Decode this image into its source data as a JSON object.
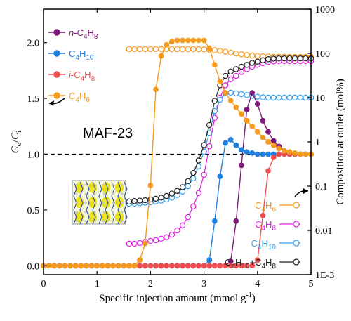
{
  "chart_data": {
    "type": "line",
    "xlabel": "Specific injection amount (mmol g-1)",
    "ylabel_left": "Co/Ci",
    "ylabel_right": "Composition at outlet (mol%)",
    "xlim": [
      0,
      5
    ],
    "ylim_left": [
      -0.08,
      2.3
    ],
    "ylim_right_log": [
      0.001,
      1000
    ],
    "x_ticks": [
      0,
      1,
      2,
      3,
      4,
      5
    ],
    "y_ticks_left": [
      0.0,
      0.5,
      1.0,
      1.5,
      2.0
    ],
    "y_ticks_right": [
      {
        "value": 0.001,
        "label": "1E-3"
      },
      {
        "value": 0.01,
        "label": "0.01"
      },
      {
        "value": 0.1,
        "label": "0.1"
      },
      {
        "value": 1,
        "label": "1"
      },
      {
        "value": 10,
        "label": "10"
      },
      {
        "value": 100,
        "label": "100"
      },
      {
        "value": 1000,
        "label": "1000"
      }
    ],
    "annotation": "MAF-23",
    "reference_line": {
      "y": 1.0,
      "style": "dashed"
    },
    "breakthrough_series": [
      {
        "name": "n-C4H8",
        "color": "#7b1a7b",
        "x": [
          0,
          0.1,
          0.2,
          0.3,
          0.4,
          0.5,
          0.6,
          0.7,
          0.8,
          0.9,
          1.0,
          1.1,
          1.2,
          1.3,
          1.4,
          1.5,
          1.6,
          1.7,
          1.8,
          1.9,
          2.0,
          2.1,
          2.2,
          2.3,
          2.4,
          2.5,
          2.6,
          2.7,
          2.8,
          2.9,
          3.0,
          3.1,
          3.2,
          3.3,
          3.4,
          3.5,
          3.6,
          3.7,
          3.8,
          3.9,
          4.0,
          4.1,
          4.2,
          4.3,
          4.4,
          4.5,
          4.6,
          4.7,
          4.8,
          4.9,
          5.0
        ],
        "y": [
          0,
          0,
          0,
          0,
          0,
          0,
          0,
          0,
          0,
          0,
          0,
          0,
          0,
          0,
          0,
          0,
          0,
          0,
          0,
          0,
          0,
          0,
          0,
          0,
          0,
          0,
          0,
          0,
          0,
          0,
          0,
          0,
          0,
          0,
          0,
          0.04,
          0.4,
          0.9,
          1.4,
          1.55,
          1.45,
          1.3,
          1.2,
          1.12,
          1.07,
          1.03,
          1.01,
          1.0,
          1.0,
          1.0,
          1.0
        ]
      },
      {
        "name": "C4H10",
        "color": "#1f7fe0",
        "x": [
          0,
          0.1,
          0.2,
          0.3,
          0.4,
          0.5,
          0.6,
          0.7,
          0.8,
          0.9,
          1.0,
          1.1,
          1.2,
          1.3,
          1.4,
          1.5,
          1.6,
          1.7,
          1.8,
          1.9,
          2.0,
          2.1,
          2.2,
          2.3,
          2.4,
          2.5,
          2.6,
          2.7,
          2.8,
          2.9,
          3.0,
          3.1,
          3.2,
          3.3,
          3.4,
          3.5,
          3.6,
          3.7,
          3.8,
          3.9,
          4.0,
          4.1,
          4.2,
          4.3,
          4.4,
          4.5,
          4.6,
          4.7,
          4.8,
          4.9,
          5.0
        ],
        "y": [
          0,
          0,
          0,
          0,
          0,
          0,
          0,
          0,
          0,
          0,
          0,
          0,
          0,
          0,
          0,
          0,
          0,
          0,
          0,
          0,
          0,
          0,
          0,
          0,
          0,
          0,
          0,
          0,
          0,
          0,
          0,
          0.05,
          0.4,
          0.8,
          1.1,
          1.13,
          1.08,
          1.04,
          1.02,
          1.01,
          1.0,
          1.0,
          1.0,
          1.0,
          1.0,
          1.0,
          1.0,
          1.0,
          1.0,
          1.0,
          1.0
        ]
      },
      {
        "name": "i-C4H8",
        "color": "#f04e4e",
        "x": [
          0,
          0.1,
          0.2,
          0.3,
          0.4,
          0.5,
          0.6,
          0.7,
          0.8,
          0.9,
          1.0,
          1.1,
          1.2,
          1.3,
          1.4,
          1.5,
          1.6,
          1.7,
          1.8,
          1.9,
          2.0,
          2.1,
          2.2,
          2.3,
          2.4,
          2.5,
          2.6,
          2.7,
          2.8,
          2.9,
          3.0,
          3.1,
          3.2,
          3.3,
          3.4,
          3.5,
          3.6,
          3.7,
          3.8,
          3.9,
          4.0,
          4.1,
          4.2,
          4.3,
          4.4,
          4.5,
          4.6,
          4.7,
          4.8,
          4.9,
          5.0
        ],
        "y": [
          0,
          0,
          0,
          0,
          0,
          0,
          0,
          0,
          0,
          0,
          0,
          0,
          0,
          0,
          0,
          0,
          0,
          0,
          0,
          0,
          0,
          0,
          0,
          0,
          0,
          0,
          0,
          0,
          0,
          0,
          0,
          0,
          0,
          0,
          0,
          0,
          0,
          0,
          0,
          0,
          0.05,
          0.45,
          0.85,
          0.97,
          1.0,
          1.0,
          1.0,
          1.0,
          1.0,
          1.0,
          1.0
        ]
      },
      {
        "name": "C4H6",
        "color": "#f59a1c",
        "x": [
          0,
          0.1,
          0.2,
          0.3,
          0.4,
          0.5,
          0.6,
          0.7,
          0.8,
          0.9,
          1.0,
          1.1,
          1.2,
          1.3,
          1.4,
          1.5,
          1.6,
          1.7,
          1.8,
          1.9,
          2.0,
          2.1,
          2.2,
          2.3,
          2.4,
          2.5,
          2.6,
          2.7,
          2.8,
          2.9,
          3.0,
          3.1,
          3.2,
          3.3,
          3.4,
          3.5,
          3.6,
          3.7,
          3.8,
          3.9,
          4.0,
          4.1,
          4.2,
          4.3,
          4.4,
          4.5,
          4.6,
          4.7,
          4.8,
          4.9,
          5.0
        ],
        "y": [
          0,
          0,
          0,
          0,
          0,
          0,
          0,
          0,
          0,
          0,
          0,
          0,
          0,
          0,
          0,
          0,
          0,
          0,
          0.05,
          0.2,
          0.72,
          1.58,
          1.88,
          1.98,
          2.01,
          2.02,
          2.02,
          2.02,
          2.02,
          2.02,
          2.02,
          1.95,
          1.8,
          1.65,
          1.55,
          1.48,
          1.42,
          1.36,
          1.3,
          1.25,
          1.2,
          1.15,
          1.11,
          1.08,
          1.05,
          1.03,
          1.02,
          1.01,
          1.0,
          1.0,
          1.0
        ]
      }
    ],
    "composition_series": [
      {
        "name": "C4H6",
        "color": "#f59a1c",
        "x": [
          1.6,
          1.7,
          1.8,
          1.9,
          2.0,
          2.1,
          2.2,
          2.3,
          2.4,
          2.5,
          2.6,
          2.7,
          2.8,
          2.9,
          3.0,
          3.1,
          3.2,
          3.3,
          3.4,
          3.5,
          3.6,
          3.7,
          3.8,
          3.9,
          4.0,
          4.1,
          4.2,
          4.3,
          4.4,
          4.5,
          4.6,
          4.7,
          4.8,
          4.9,
          5.0
        ],
        "y": [
          125,
          125,
          125,
          125,
          125,
          125,
          125,
          125,
          125,
          125,
          125,
          125,
          125,
          124,
          123,
          121,
          118,
          114,
          109,
          104,
          99,
          95,
          92,
          89,
          87,
          86,
          85,
          84,
          84,
          84,
          83,
          83,
          83,
          83,
          83
        ]
      },
      {
        "name": "C4H8",
        "color": "#e020e0",
        "x": [
          1.6,
          1.7,
          1.8,
          1.9,
          2.0,
          2.1,
          2.2,
          2.3,
          2.4,
          2.5,
          2.6,
          2.7,
          2.8,
          2.9,
          3.0,
          3.1,
          3.2,
          3.3,
          3.4,
          3.5,
          3.6,
          3.7,
          3.8,
          3.9,
          4.0,
          4.1,
          4.2,
          4.3,
          4.4,
          4.5,
          4.6,
          4.7,
          4.8,
          4.9,
          5.0
        ],
        "y": [
          0.005,
          0.005,
          0.0052,
          0.0055,
          0.0058,
          0.006,
          0.0065,
          0.007,
          0.008,
          0.01,
          0.013,
          0.02,
          0.035,
          0.07,
          0.18,
          0.8,
          3.5,
          10,
          19,
          26,
          31,
          38,
          44,
          50,
          55,
          60,
          64,
          66,
          67,
          67,
          67,
          67,
          67,
          67,
          67
        ]
      },
      {
        "name": "C4H10",
        "color": "#3aa0e8",
        "x": [
          1.6,
          1.7,
          1.8,
          1.9,
          2.0,
          2.1,
          2.2,
          2.3,
          2.4,
          2.5,
          2.6,
          2.7,
          2.8,
          2.9,
          3.0,
          3.1,
          3.2,
          3.3,
          3.4,
          3.5,
          3.6,
          3.7,
          3.8,
          3.9,
          4.0,
          4.1,
          4.2,
          4.3,
          4.4,
          4.5,
          4.6,
          4.7,
          4.8,
          4.9,
          5.0
        ],
        "y": [
          0.04,
          0.04,
          0.041,
          0.042,
          0.043,
          0.045,
          0.047,
          0.05,
          0.055,
          0.063,
          0.075,
          0.1,
          0.15,
          0.28,
          0.6,
          1.6,
          5,
          9,
          12.5,
          13,
          12.5,
          12,
          11.5,
          11,
          10.5,
          10.2,
          10,
          10,
          10,
          10,
          10,
          10,
          10,
          10,
          10
        ]
      },
      {
        "name": "C4H10+C4H8",
        "color": "#222222",
        "x": [
          1.6,
          1.7,
          1.8,
          1.9,
          2.0,
          2.1,
          2.2,
          2.3,
          2.4,
          2.5,
          2.6,
          2.7,
          2.8,
          2.9,
          3.0,
          3.1,
          3.2,
          3.3,
          3.4,
          3.5,
          3.6,
          3.7,
          3.8,
          3.9,
          4.0,
          4.1,
          4.2,
          4.3,
          4.4,
          4.5,
          4.6,
          4.7,
          4.8,
          4.9,
          5.0
        ],
        "y": [
          0.045,
          0.046,
          0.047,
          0.048,
          0.05,
          0.052,
          0.055,
          0.06,
          0.068,
          0.078,
          0.095,
          0.13,
          0.2,
          0.38,
          0.85,
          2.4,
          8.5,
          19,
          31,
          39,
          44,
          50,
          55,
          61,
          65,
          70,
          74,
          76,
          77,
          77,
          77,
          77,
          77,
          77,
          77
        ]
      }
    ],
    "legend_left": [
      {
        "name": "n-C4H8",
        "color": "#7b1a7b"
      },
      {
        "name": "C4H10",
        "color": "#1f7fe0"
      },
      {
        "name": "i-C4H8",
        "color": "#f04e4e"
      },
      {
        "name": "C4H6",
        "color": "#f59a1c"
      }
    ],
    "legend_right": [
      {
        "name": "C4H6",
        "color": "#f59a1c"
      },
      {
        "name": "C4H8",
        "color": "#e020e0"
      },
      {
        "name": "C4H10",
        "color": "#3aa0e8"
      },
      {
        "name": "C4H10+C4H8",
        "color": "#222222"
      }
    ],
    "legend_placement": "top-left (breakthrough), bottom-right (composition)"
  },
  "inset": {
    "background": "#f6f6d8",
    "frame_color": "#888888",
    "pore_color": "#ece21a",
    "bond_color": "#2a4fb0",
    "atom_color": "#c9c9c9"
  }
}
